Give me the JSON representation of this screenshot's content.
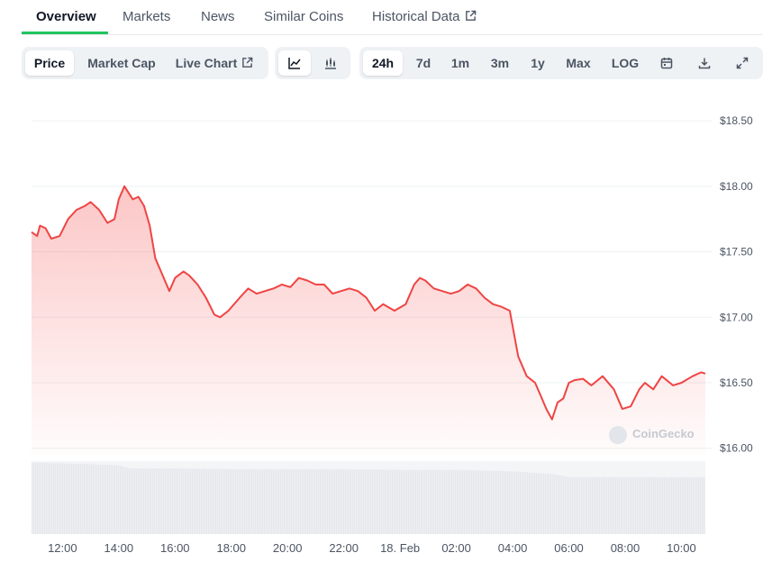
{
  "tabs": [
    {
      "label": "Overview",
      "active": true
    },
    {
      "label": "Markets"
    },
    {
      "label": "News"
    },
    {
      "label": "Similar Coins"
    },
    {
      "label": "Historical Data",
      "icon": "external-link-icon"
    }
  ],
  "toolbar": {
    "view_buttons": [
      {
        "label": "Price",
        "selected": true
      },
      {
        "label": "Market Cap"
      },
      {
        "label": "Live Chart",
        "icon": "external-link-icon"
      }
    ],
    "chart_type_buttons": [
      {
        "icon": "line-chart-icon",
        "selected": true
      },
      {
        "icon": "candlestick-chart-icon"
      }
    ],
    "range_buttons": [
      {
        "label": "24h",
        "selected": true
      },
      {
        "label": "7d"
      },
      {
        "label": "1m"
      },
      {
        "label": "3m"
      },
      {
        "label": "1y"
      },
      {
        "label": "Max"
      },
      {
        "label": "LOG"
      }
    ],
    "action_icons": [
      "calendar-icon",
      "download-icon",
      "fullscreen-icon"
    ]
  },
  "watermark": "CoinGecko",
  "colors": {
    "line": "#ef4444",
    "fill": "#fecaca",
    "accent": "#22c55e",
    "volume": "#e5e7eb"
  },
  "chart_data": {
    "type": "area",
    "y_axis_position": "right",
    "ylim": [
      15.95,
      18.7
    ],
    "y_ticks": [
      16.0,
      16.5,
      17.0,
      17.5,
      18.0,
      18.5
    ],
    "y_tick_labels": [
      "$16.00",
      "$16.50",
      "$17.00",
      "$17.50",
      "$18.00",
      "$18.50"
    ],
    "xlim": [
      10.9,
      34.85
    ],
    "x_ticks": [
      12,
      14,
      16,
      18,
      20,
      22,
      24,
      26,
      28,
      30,
      32,
      34
    ],
    "x_tick_labels": [
      "12:00",
      "14:00",
      "16:00",
      "18:00",
      "20:00",
      "22:00",
      "18. Feb",
      "02:00",
      "04:00",
      "06:00",
      "08:00",
      "10:00"
    ],
    "price": {
      "x": [
        10.9,
        11.1,
        11.2,
        11.4,
        11.6,
        11.9,
        12.2,
        12.5,
        12.8,
        13.0,
        13.3,
        13.6,
        13.85,
        14.0,
        14.2,
        14.5,
        14.7,
        14.9,
        15.1,
        15.3,
        15.5,
        15.8,
        16.0,
        16.3,
        16.5,
        16.8,
        17.1,
        17.4,
        17.6,
        17.9,
        18.3,
        18.6,
        18.9,
        19.2,
        19.5,
        19.8,
        20.1,
        20.4,
        20.7,
        21.0,
        21.3,
        21.6,
        21.9,
        22.2,
        22.5,
        22.8,
        23.1,
        23.4,
        23.8,
        24.2,
        24.5,
        24.7,
        24.9,
        25.2,
        25.5,
        25.8,
        26.1,
        26.4,
        26.7,
        27.0,
        27.3,
        27.6,
        27.9,
        28.2,
        28.5,
        28.8,
        29.0,
        29.2,
        29.4,
        29.6,
        29.8,
        30.0,
        30.2,
        30.5,
        30.8,
        31.2,
        31.6,
        31.9,
        32.2,
        32.5,
        32.7,
        33.0,
        33.3,
        33.7,
        34.0,
        34.4,
        34.7,
        34.85
      ],
      "y": [
        17.65,
        17.62,
        17.7,
        17.68,
        17.6,
        17.62,
        17.75,
        17.82,
        17.85,
        17.88,
        17.82,
        17.72,
        17.75,
        17.9,
        18.0,
        17.9,
        17.92,
        17.85,
        17.7,
        17.45,
        17.35,
        17.2,
        17.3,
        17.35,
        17.32,
        17.25,
        17.15,
        17.02,
        17.0,
        17.05,
        17.15,
        17.22,
        17.18,
        17.2,
        17.22,
        17.25,
        17.23,
        17.3,
        17.28,
        17.25,
        17.25,
        17.18,
        17.2,
        17.22,
        17.2,
        17.15,
        17.05,
        17.1,
        17.05,
        17.1,
        17.25,
        17.3,
        17.28,
        17.22,
        17.2,
        17.18,
        17.2,
        17.25,
        17.22,
        17.15,
        17.1,
        17.08,
        17.05,
        16.7,
        16.55,
        16.5,
        16.4,
        16.3,
        16.22,
        16.35,
        16.38,
        16.5,
        16.52,
        16.53,
        16.48,
        16.55,
        16.45,
        16.3,
        16.32,
        16.45,
        16.5,
        16.45,
        16.55,
        16.48,
        16.5,
        16.55,
        16.58,
        16.57
      ]
    },
    "volume": {
      "x": [
        10.9,
        12,
        13,
        14,
        14.4,
        16,
        18,
        20,
        22,
        24,
        26,
        28,
        29.5,
        30,
        32,
        34,
        34.85
      ],
      "relative_level": [
        0.98,
        0.97,
        0.96,
        0.94,
        0.9,
        0.9,
        0.89,
        0.89,
        0.89,
        0.88,
        0.88,
        0.86,
        0.82,
        0.78,
        0.78,
        0.78,
        0.78
      ]
    }
  }
}
